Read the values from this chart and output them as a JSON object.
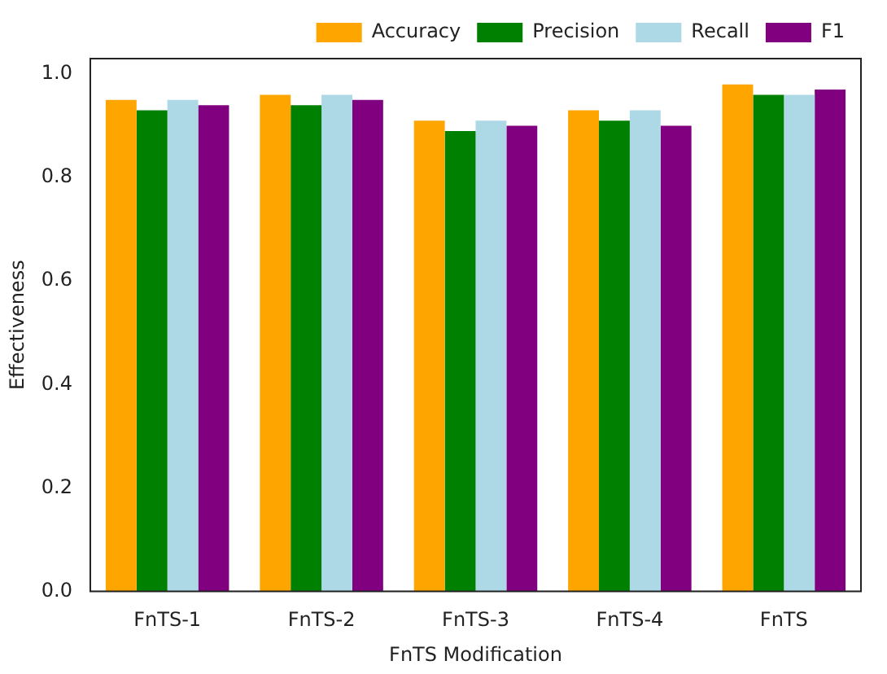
{
  "chart_data": {
    "type": "bar",
    "xlabel": "FnTS Modification",
    "ylabel": "Effectiveness",
    "categories": [
      "FnTS-1",
      "FnTS-2",
      "FnTS-3",
      "FnTS-4",
      "FnTS"
    ],
    "series": [
      {
        "name": "Accuracy",
        "color": "#ffa500",
        "values": [
          0.95,
          0.96,
          0.91,
          0.93,
          0.98
        ]
      },
      {
        "name": "Precision",
        "color": "#008000",
        "values": [
          0.93,
          0.94,
          0.89,
          0.91,
          0.96
        ]
      },
      {
        "name": "Recall",
        "color": "#add8e6",
        "values": [
          0.95,
          0.96,
          0.91,
          0.93,
          0.96
        ]
      },
      {
        "name": "F1",
        "color": "#800080",
        "values": [
          0.94,
          0.95,
          0.9,
          0.9,
          0.97
        ]
      }
    ],
    "ylim": [
      0,
      1.03
    ],
    "yticks": [
      {
        "value": 0,
        "label": "0.0"
      },
      {
        "value": 0.2,
        "label": "0.2"
      },
      {
        "value": 0.4,
        "label": "0.4"
      },
      {
        "value": 0.6,
        "label": "0.6"
      },
      {
        "value": 0.8,
        "label": "0.8"
      },
      {
        "value": 1,
        "label": "1.0"
      }
    ],
    "grid": false,
    "legend": "top right"
  }
}
